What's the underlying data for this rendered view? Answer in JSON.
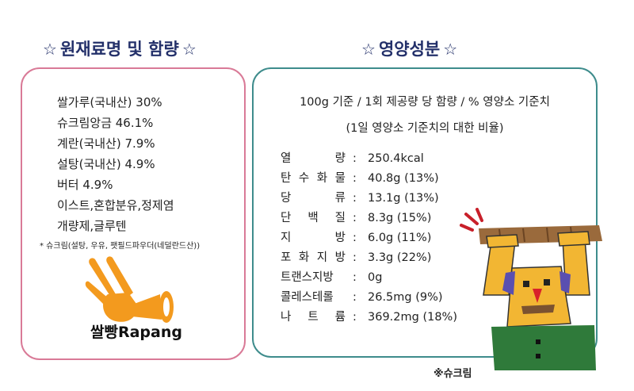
{
  "headings": {
    "ingredients": "원재료명 및 함량",
    "nutrition": "영양성분",
    "star": "☆"
  },
  "ingredients": {
    "items": [
      "쌀가루(국내산) 30%",
      "슈크림앙금  46.1%",
      "계란(국내산) 7.9%",
      "설탕(국내산) 4.9%",
      "버터 4.9%",
      "이스트,혼합분유,정제염",
      "개량제,글루텐"
    ],
    "note": "* 슈크림(설탕, 우유,  팻필드파우더(네덜란드산))"
  },
  "brand": {
    "logo_text": "쌀빵Rapang"
  },
  "nutrition": {
    "basis_line1": "100g 기준 / 1회 제공량 당 함량 / % 영양소 기준치",
    "basis_line2": "(1일 영양소 기준치의 대한 비율)",
    "rows": [
      {
        "chars": [
          "열",
          "량"
        ],
        "value": "250.4kcal"
      },
      {
        "chars": [
          "탄",
          "수",
          "화",
          "물"
        ],
        "value": "40.8g (13%)"
      },
      {
        "chars": [
          "당",
          "류"
        ],
        "value": "13.1g (13%)"
      },
      {
        "chars": [
          "단",
          "백",
          "질"
        ],
        "value": "8.3g (15%)"
      },
      {
        "chars": [
          "지",
          "방"
        ],
        "value": "6.0g (11%)"
      },
      {
        "chars": [
          "포",
          "화",
          "지",
          "방"
        ],
        "value": "3.3g (22%)"
      },
      {
        "chars": [
          "트랜스지방"
        ],
        "value": "0g"
      },
      {
        "chars": [
          "콜레스테롤"
        ],
        "value": "26.5mg (9%)"
      },
      {
        "chars": [
          "나",
          "트",
          "륨"
        ],
        "value": "369.2mg (18%)"
      }
    ],
    "colon": ":"
  },
  "mascot": {
    "caption": "※슈크림"
  },
  "colors": {
    "heading": "#23306a",
    "ingredients_border": "#d97a97",
    "nutrition_border": "#3e8c8c",
    "logo_orange": "#f39a1e",
    "mascot_yellow": "#f2b633",
    "mascot_green": "#2f7a3a",
    "bread_brown": "#9a6a3c"
  }
}
